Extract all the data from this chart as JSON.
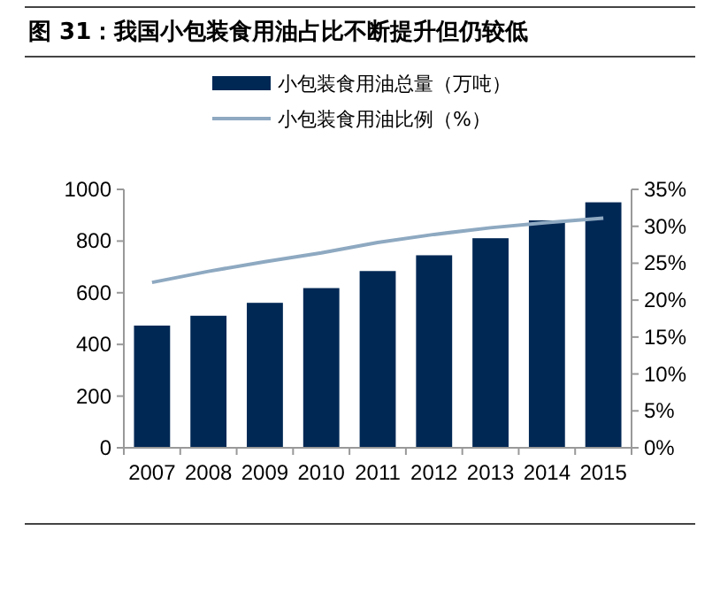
{
  "chart_data": {
    "type": "bar",
    "title": "图 31：我国小包装食用油占比不断提升但仍较低",
    "categories": [
      "2007",
      "2008",
      "2009",
      "2010",
      "2011",
      "2012",
      "2013",
      "2014",
      "2015"
    ],
    "series": [
      {
        "name": "小包装食用油总量（万吨）",
        "color": "#002855",
        "values": [
          473,
          511,
          561,
          618,
          684,
          745,
          811,
          880,
          950
        ]
      },
      {
        "name": "小包装食用油比例（%）",
        "type": "line",
        "axis": "y2",
        "color": "#8ea9c1",
        "values": [
          22.4,
          23.9,
          25.2,
          26.4,
          27.8,
          28.9,
          29.8,
          30.5,
          31.1
        ]
      }
    ],
    "ylim": [
      0,
      1000
    ],
    "yticks": [
      0,
      200,
      400,
      600,
      800,
      1000
    ],
    "y2lim": [
      0,
      35
    ],
    "y2ticks": [
      {
        "value": 0,
        "label": "0%"
      },
      {
        "value": 5,
        "label": "5%"
      },
      {
        "value": 10,
        "label": "10%"
      },
      {
        "value": 15,
        "label": "15%"
      },
      {
        "value": 20,
        "label": "20%"
      },
      {
        "value": 25,
        "label": "25%"
      },
      {
        "value": 30,
        "label": "30%"
      },
      {
        "value": 35,
        "label": "35%"
      }
    ],
    "legend": "top"
  }
}
